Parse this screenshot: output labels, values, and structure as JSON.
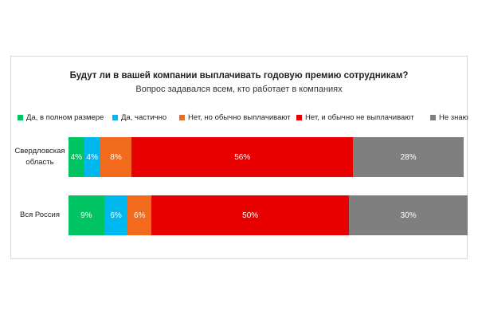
{
  "chart_data": {
    "type": "bar",
    "orientation": "horizontal",
    "stacked": true,
    "title": "Будут ли в вашей компании выплачивать годовую премию сотрудникам?",
    "subtitle": "Вопрос задавался всем, кто работает в компаниях",
    "categories": [
      "Свердловская область",
      "Вся Россия"
    ],
    "series": [
      {
        "name": "Да, в полном размере",
        "color": "#00c462",
        "values": [
          4,
          9
        ],
        "value_labels": [
          "4%",
          "9%"
        ]
      },
      {
        "name": "Да, частично",
        "color": "#00b8f0",
        "values": [
          4,
          6
        ],
        "value_labels": [
          "4%",
          "6%"
        ]
      },
      {
        "name": "Нет, но обычно выплачивают",
        "color": "#f26a1b",
        "values": [
          8,
          6
        ],
        "value_labels": [
          "8%",
          "6%"
        ]
      },
      {
        "name": "Нет, и обычно не выплачивают",
        "color": "#e80000",
        "values": [
          56,
          50
        ],
        "value_labels": [
          "56%",
          "50%"
        ]
      },
      {
        "name": "Не знаю",
        "color": "#7f7f7f",
        "values": [
          28,
          30
        ],
        "value_labels": [
          "28%",
          "30%"
        ]
      }
    ]
  }
}
